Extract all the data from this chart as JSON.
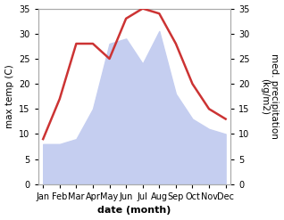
{
  "months": [
    "Jan",
    "Feb",
    "Mar",
    "Apr",
    "May",
    "Jun",
    "Jul",
    "Aug",
    "Sep",
    "Oct",
    "Nov",
    "Dec"
  ],
  "temperature": [
    9,
    17,
    28,
    28,
    25,
    33,
    35,
    34,
    28,
    20,
    15,
    13
  ],
  "precipitation": [
    8,
    8,
    9,
    15,
    28,
    29,
    24,
    30.5,
    18,
    13,
    11,
    10
  ],
  "temp_color": "#cc3333",
  "precip_fill_color": "#c5cef0",
  "ylim": [
    0,
    35
  ],
  "yticks": [
    0,
    5,
    10,
    15,
    20,
    25,
    30,
    35
  ],
  "xlabel": "date (month)",
  "ylabel_left": "max temp (C)",
  "ylabel_right": "med. precipitation\n(kg/m2)",
  "bg_color": "#ffffff",
  "spine_color": "#aaaaaa",
  "temp_linewidth": 1.8,
  "xlabel_fontsize": 8,
  "ylabel_fontsize": 7.5,
  "tick_fontsize": 7
}
